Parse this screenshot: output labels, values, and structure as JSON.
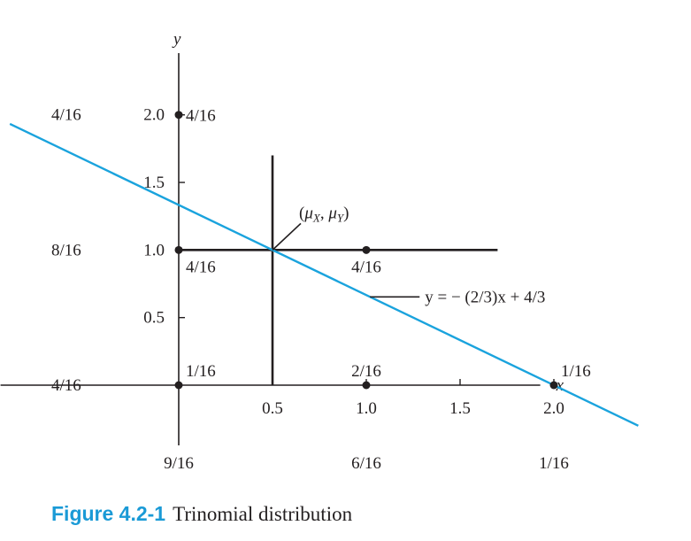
{
  "chart_data": {
    "type": "scatter",
    "title": "",
    "xlabel": "x",
    "ylabel": "y",
    "xlim": [
      -0.95,
      4.9
    ],
    "ylim": [
      -1.05,
      2.55
    ],
    "x_ticks": [
      {
        "value": 0.5,
        "label": "0.5"
      },
      {
        "value": 1.0,
        "label": "1.0"
      },
      {
        "value": 1.5,
        "label": "1.5"
      },
      {
        "value": 2.0,
        "label": "2.0"
      }
    ],
    "y_ticks": [
      {
        "value": 0.5,
        "label": "0.5"
      },
      {
        "value": 1.0,
        "label": "1.0"
      },
      {
        "value": 1.5,
        "label": "1.5"
      },
      {
        "value": 2.0,
        "label": "2.0"
      }
    ],
    "points": [
      {
        "x": 0,
        "y": 0,
        "label": "1/16"
      },
      {
        "x": 1,
        "y": 0,
        "label": "2/16"
      },
      {
        "x": 2,
        "y": 0,
        "label": "1/16"
      },
      {
        "x": 0,
        "y": 1,
        "label": "4/16"
      },
      {
        "x": 1,
        "y": 1,
        "label": "4/16"
      },
      {
        "x": 0,
        "y": 2,
        "label": "4/16"
      }
    ],
    "marginal_y": [
      {
        "y": 2,
        "label": "4/16"
      },
      {
        "y": 1,
        "label": "8/16"
      },
      {
        "y": 0,
        "label": "4/16"
      }
    ],
    "marginal_x": [
      {
        "x": 0,
        "label": "9/16"
      },
      {
        "x": 1,
        "label": "6/16"
      },
      {
        "x": 2,
        "label": "1/16"
      }
    ],
    "conditional_means": {
      "horizontal": {
        "y": 1.0,
        "x_from": 0,
        "x_to": 1.7
      },
      "vertical": {
        "x": 0.5,
        "y_from": 0,
        "y_to": 1.7
      }
    },
    "mean_point": {
      "x": 0.5,
      "y": 1.0,
      "label_parts": [
        "(",
        "μ",
        "X",
        ", ",
        "μ",
        "Y",
        ")"
      ]
    },
    "regression_line": {
      "slope": -0.6667,
      "intercept": 1.3333,
      "x_from": -0.9,
      "x_to": 2.45,
      "label": "y = − (2/3)x + 4/3",
      "color": "#1aa3dd"
    }
  },
  "caption": {
    "label": "Figure 4.2-1",
    "text": "Trinomial distribution",
    "label_color": "#1a9ad6"
  }
}
